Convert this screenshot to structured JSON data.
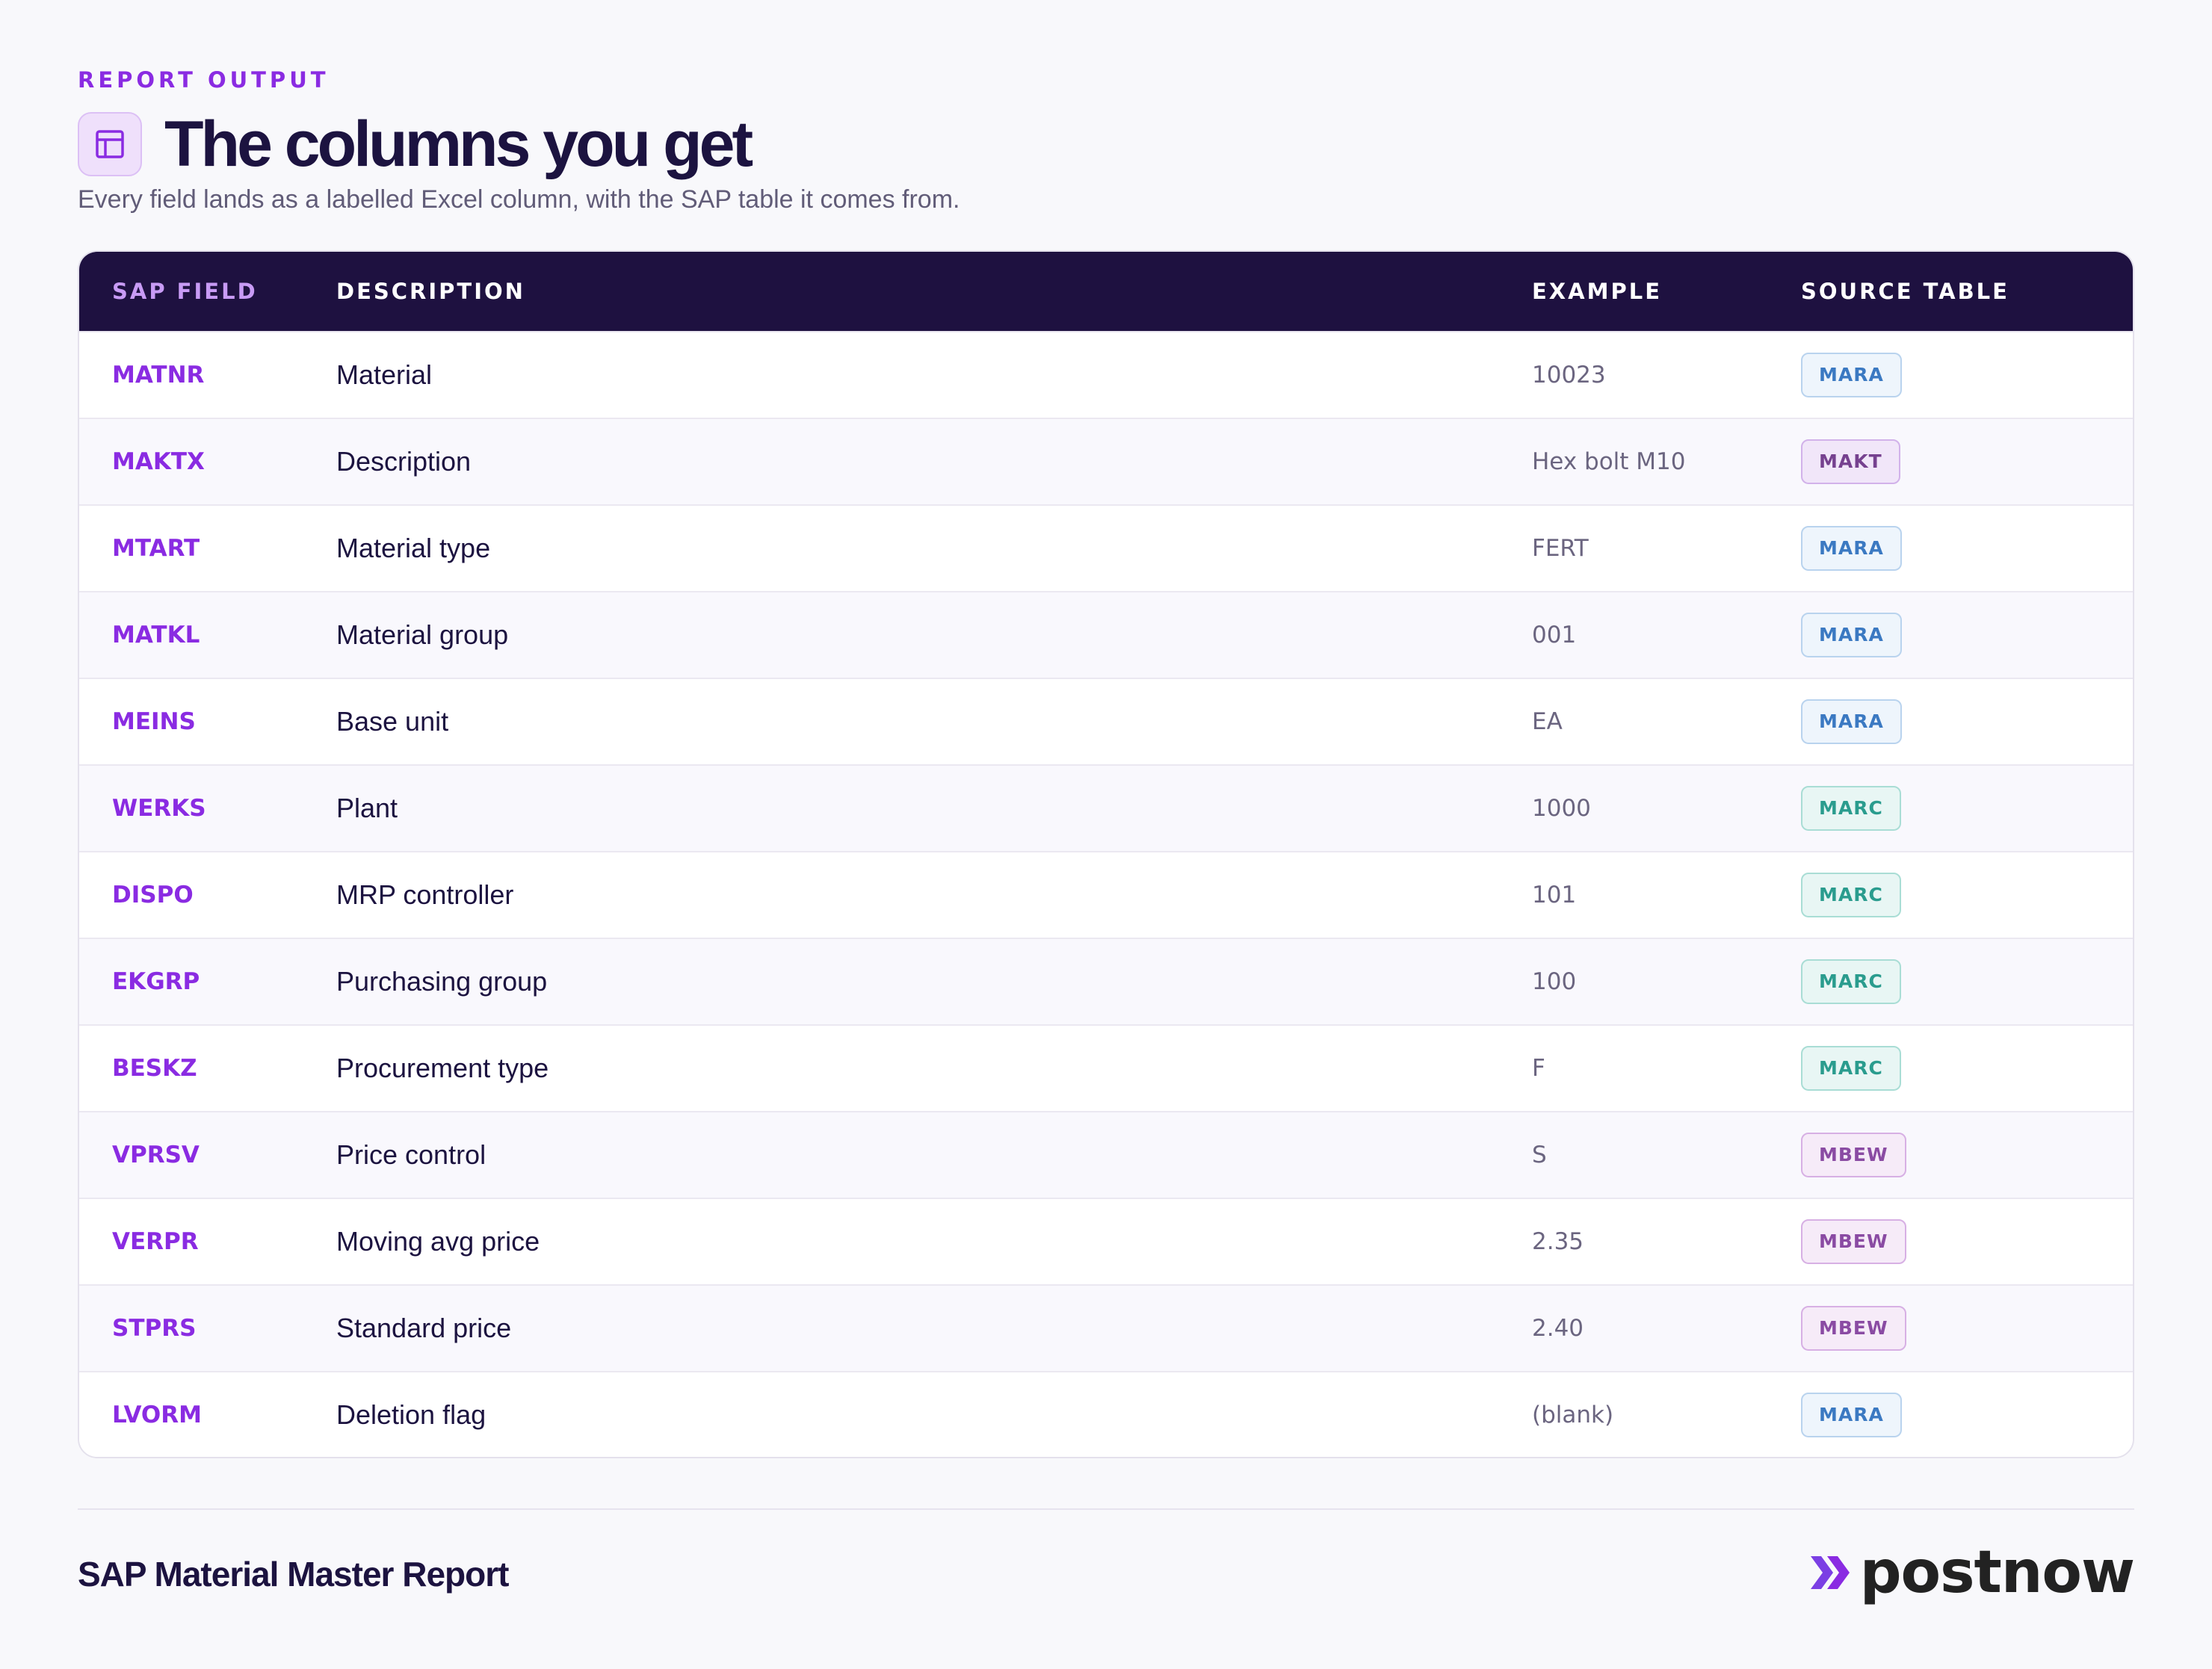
{
  "header": {
    "eyebrow": "REPORT OUTPUT",
    "title": "The columns you get",
    "subtitle": "Every field lands as a labelled Excel column, with the SAP table it comes from."
  },
  "table": {
    "columns": {
      "field": "SAP FIELD",
      "description": "DESCRIPTION",
      "example": "EXAMPLE",
      "source": "SOURCE TABLE"
    },
    "rows": [
      {
        "field": "MATNR",
        "description": "Material",
        "example": "10023",
        "source": "MARA"
      },
      {
        "field": "MAKTX",
        "description": "Description",
        "example": "Hex bolt M10",
        "source": "MAKT"
      },
      {
        "field": "MTART",
        "description": "Material type",
        "example": "FERT",
        "source": "MARA"
      },
      {
        "field": "MATKL",
        "description": "Material group",
        "example": "001",
        "source": "MARA"
      },
      {
        "field": "MEINS",
        "description": "Base unit",
        "example": "EA",
        "source": "MARA"
      },
      {
        "field": "WERKS",
        "description": "Plant",
        "example": "1000",
        "source": "MARC"
      },
      {
        "field": "DISPO",
        "description": "MRP controller",
        "example": "101",
        "source": "MARC"
      },
      {
        "field": "EKGRP",
        "description": "Purchasing group",
        "example": "100",
        "source": "MARC"
      },
      {
        "field": "BESKZ",
        "description": "Procurement type",
        "example": "F",
        "source": "MARC"
      },
      {
        "field": "VPRSV",
        "description": "Price control",
        "example": "S",
        "source": "MBEW"
      },
      {
        "field": "VERPR",
        "description": "Moving avg price",
        "example": "2.35",
        "source": "MBEW"
      },
      {
        "field": "STPRS",
        "description": "Standard price",
        "example": "2.40",
        "source": "MBEW"
      },
      {
        "field": "LVORM",
        "description": "Deletion flag",
        "example": "(blank)",
        "source": "MARA"
      }
    ]
  },
  "footer": {
    "title": "SAP Material Master Report",
    "brand": "postnow"
  },
  "icons": {
    "title_icon": "table-icon",
    "brand_icon": "double-chevron-icon"
  },
  "colors": {
    "accent": "#8a2be2",
    "header_bg": "#1e1140",
    "text": "#1c1340"
  }
}
